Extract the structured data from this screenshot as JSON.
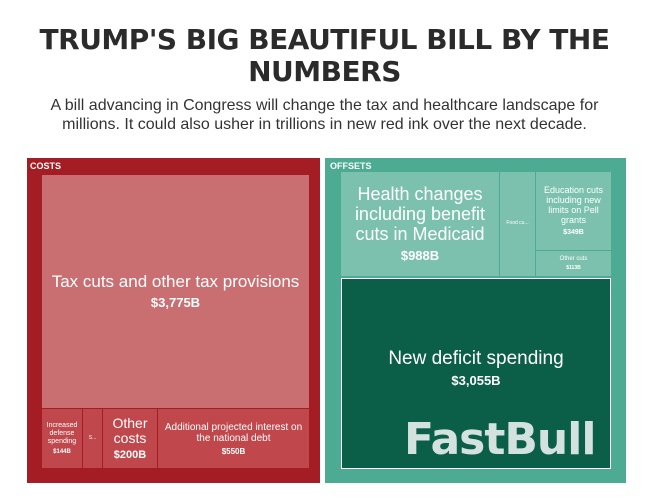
{
  "header": {
    "title": "TRUMP'S BIG BEAUTIFUL BILL BY THE NUMBERS",
    "subtitle": "A bill advancing in Congress will change the tax and healthcare landscape for millions. It could also usher in trillions in new red ink over the next decade."
  },
  "chart_data": {
    "type": "treemap",
    "unit": "$ billions",
    "groups": [
      {
        "label": "COSTS",
        "color": "#a51d24",
        "items": [
          {
            "key": "tax",
            "label": "Tax cuts and other tax provisions",
            "value_label": "$3,775B",
            "value": 3775,
            "color": "#c96f72"
          },
          {
            "key": "defense",
            "label": "Increased defense spending",
            "value_label": "$144B",
            "value": 144,
            "color": "#c0474b"
          },
          {
            "key": "small",
            "label": "S...",
            "value_label": "",
            "value": null,
            "color": "#c0474b"
          },
          {
            "key": "other_costs",
            "label": "Other costs",
            "value_label": "$200B",
            "value": 200,
            "color": "#c0474b"
          },
          {
            "key": "interest",
            "label": "Additional projected interest on the national debt",
            "value_label": "$550B",
            "value": 550,
            "color": "#c0474b"
          }
        ]
      },
      {
        "label": "OFFSETS",
        "color": "#4dab94",
        "items": [
          {
            "key": "health",
            "label": "Health changes including benefit cuts in Medicaid",
            "value_label": "$988B",
            "value": 988,
            "color": "#7bc1ae"
          },
          {
            "key": "food",
            "label": "Food cu...",
            "value_label": "",
            "value": null,
            "color": "#7bc1ae"
          },
          {
            "key": "education",
            "label": "Education cuts including new limits on Pell grants",
            "value_label": "$349B",
            "value": 349,
            "color": "#7bc1ae"
          },
          {
            "key": "other_cuts",
            "label": "Other cuts",
            "value_label": "$113B",
            "value": 113,
            "color": "#7bc1ae"
          },
          {
            "key": "deficit",
            "label": "New deficit spending",
            "value_label": "$3,055B",
            "value": 3055,
            "color": "#0b5e48"
          }
        ]
      }
    ]
  },
  "watermark": "FastBull"
}
